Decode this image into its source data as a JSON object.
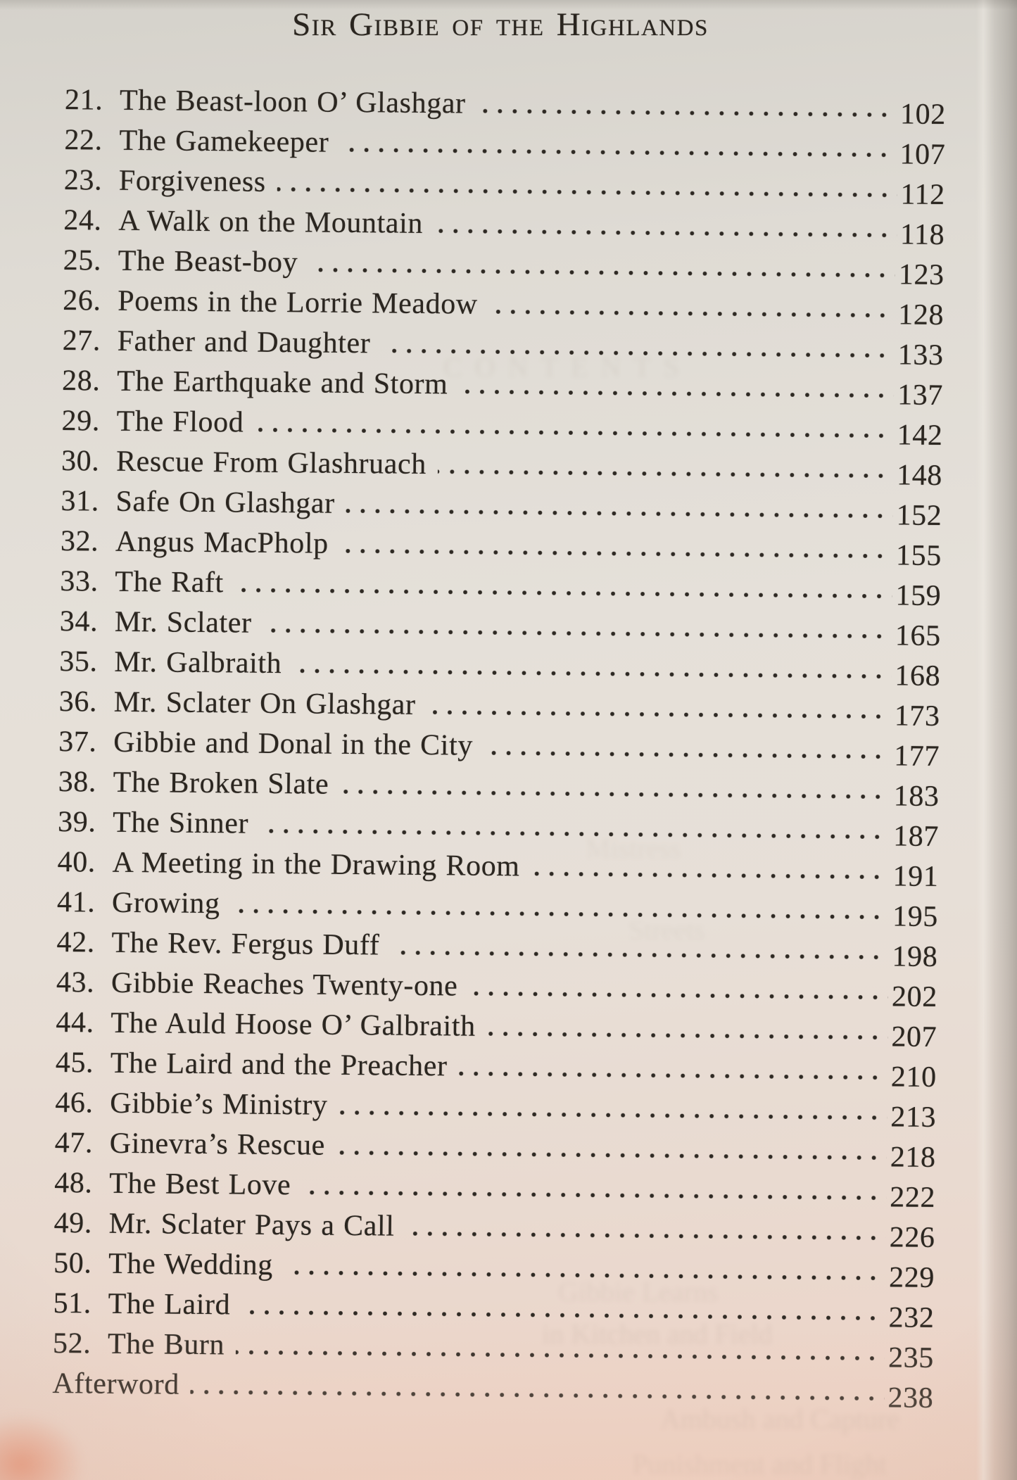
{
  "page": {
    "header": "Sir Gibbie of the Highlands",
    "toc": {
      "entries": [
        {
          "num": "21.",
          "title": "The Beast-loon O’ Glashgar",
          "page": "102"
        },
        {
          "num": "22.",
          "title": "The Gamekeeper",
          "page": "107"
        },
        {
          "num": "23.",
          "title": "Forgiveness",
          "page": "112"
        },
        {
          "num": "24.",
          "title": "A Walk on the Mountain",
          "page": "118"
        },
        {
          "num": "25.",
          "title": "The Beast-boy",
          "page": "123"
        },
        {
          "num": "26.",
          "title": "Poems in the Lorrie Meadow",
          "page": "128"
        },
        {
          "num": "27.",
          "title": "Father and Daughter",
          "page": "133"
        },
        {
          "num": "28.",
          "title": "The Earthquake and Storm",
          "page": "137"
        },
        {
          "num": "29.",
          "title": "The Flood",
          "page": "142"
        },
        {
          "num": "30.",
          "title": "Rescue From Glashruach",
          "page": "148"
        },
        {
          "num": "31.",
          "title": "Safe On Glashgar",
          "page": "152"
        },
        {
          "num": "32.",
          "title": "Angus MacPholp",
          "page": "155"
        },
        {
          "num": "33.",
          "title": "The Raft",
          "page": "159"
        },
        {
          "num": "34.",
          "title": "Mr. Sclater",
          "page": "165"
        },
        {
          "num": "35.",
          "title": "Mr. Galbraith",
          "page": "168"
        },
        {
          "num": "36.",
          "title": "Mr. Sclater On Glashgar",
          "page": "173"
        },
        {
          "num": "37.",
          "title": "Gibbie and Donal in the City",
          "page": "177"
        },
        {
          "num": "38.",
          "title": "The Broken Slate",
          "page": "183"
        },
        {
          "num": "39.",
          "title": "The Sinner",
          "page": "187"
        },
        {
          "num": "40.",
          "title": "A Meeting in the Drawing Room",
          "page": "191"
        },
        {
          "num": "41.",
          "title": "Growing",
          "page": "195"
        },
        {
          "num": "42.",
          "title": "The Rev. Fergus Duff",
          "page": "198"
        },
        {
          "num": "43.",
          "title": "Gibbie Reaches Twenty-one",
          "page": "202"
        },
        {
          "num": "44.",
          "title": "The Auld Hoose O’ Galbraith",
          "page": "207"
        },
        {
          "num": "45.",
          "title": "The Laird and the Preacher",
          "page": "210"
        },
        {
          "num": "46.",
          "title": "Gibbie’s Ministry",
          "page": "213"
        },
        {
          "num": "47.",
          "title": "Ginevra’s Rescue",
          "page": "218"
        },
        {
          "num": "48.",
          "title": "The Best Love",
          "page": "222"
        },
        {
          "num": "49.",
          "title": "Mr. Sclater Pays a Call",
          "page": "226"
        },
        {
          "num": "50.",
          "title": "The Wedding",
          "page": "229"
        },
        {
          "num": "51.",
          "title": "The Laird",
          "page": "232"
        },
        {
          "num": "52.",
          "title": "The Burn",
          "page": "235"
        },
        {
          "num": "",
          "title": "Afterword",
          "page": "238"
        }
      ]
    },
    "ghost_bleedthrough": {
      "contents": "CONTENTS",
      "line_mistress": "Mistress",
      "line_streets": "Streets",
      "line_learns": "Gibbie Learns",
      "line_kitchen": "in Kitchen and Field",
      "line_ambush": "Ambush and Capture",
      "line_punish": "Punishment and Flight"
    },
    "colors": {
      "paper_top": "#d5d2cb",
      "paper_mid": "#e7e1d9",
      "paper_bottom": "#ecd5c9",
      "ink": "#2b2620",
      "edge_shadow": "#9b968f",
      "finger_blob": "#e79375"
    }
  }
}
